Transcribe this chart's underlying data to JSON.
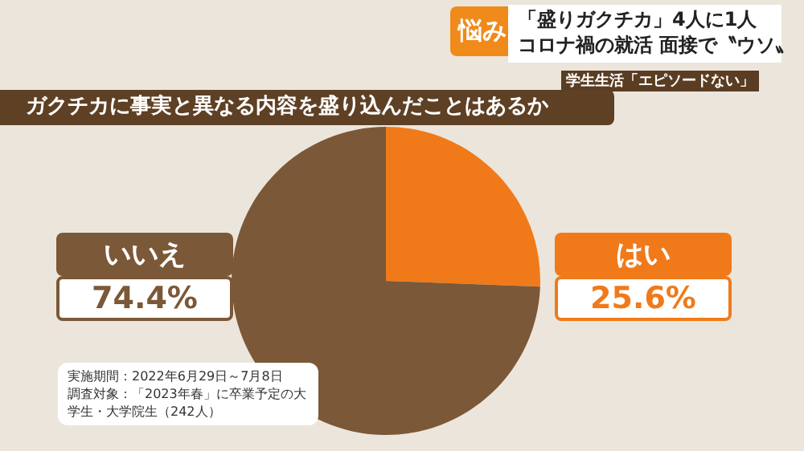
{
  "chart_data": {
    "type": "pie",
    "title": "ガクチカに事実と異なる内容を盛り込んだことはあるか",
    "categories": [
      "はい",
      "いいえ"
    ],
    "values": [
      25.6,
      74.4
    ],
    "value_labels": [
      "25.6%",
      "74.4%"
    ],
    "colors": [
      "#f07a1a",
      "#7b5837"
    ],
    "annotations": [
      "悩み",
      "「盛りガクチカ」4人に1人",
      "コロナ禍の就活 面接で〝ウソ〟",
      "学生生活「エピソードない」",
      "実施期間：2022年6月29日～7月8日",
      "調査対象：「2023年春」に卒業予定の大学生・大学院生（242人）"
    ]
  }
}
